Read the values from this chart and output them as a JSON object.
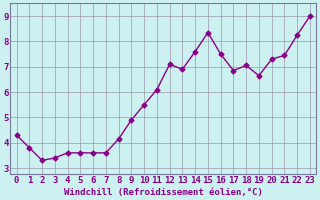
{
  "x": [
    0,
    1,
    2,
    3,
    4,
    5,
    6,
    7,
    8,
    9,
    10,
    11,
    12,
    13,
    14,
    15,
    16,
    17,
    18,
    19,
    20,
    21,
    22,
    23
  ],
  "y": [
    4.3,
    3.8,
    3.3,
    3.4,
    3.6,
    3.6,
    3.6,
    3.6,
    4.15,
    4.9,
    5.5,
    6.1,
    7.1,
    6.9,
    7.6,
    8.35,
    7.5,
    6.85,
    7.05,
    6.65,
    7.3,
    7.45,
    8.25,
    9.0
  ],
  "line_color": "#880088",
  "marker": "D",
  "marker_size": 2.5,
  "bg_color": "#cdf0f0",
  "plot_bg_color": "#cdf0f0",
  "grid_color": "#9999aa",
  "xlabel": "Windchill (Refroidissement éolien,°C)",
  "xlabel_color": "#880088",
  "xlabel_fontsize": 6.5,
  "ylabel_ticks": [
    3,
    4,
    5,
    6,
    7,
    8,
    9
  ],
  "xlim": [
    -0.5,
    23.5
  ],
  "ylim": [
    2.75,
    9.5
  ],
  "tick_fontsize": 6.5,
  "tick_color": "#880088",
  "spine_color": "#777799"
}
